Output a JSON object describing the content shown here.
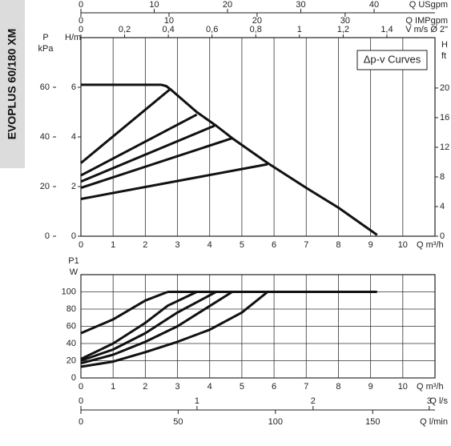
{
  "side_label": "EVOPLUS 60/180 XM",
  "chart_data": [
    {
      "type": "line",
      "annotation": "Δp-v Curves",
      "xlabel": "Q m³/h",
      "ylabel": "H/m",
      "y2label": [
        "H",
        "ft"
      ],
      "xlim": [
        0,
        11
      ],
      "xticks": [
        0,
        1,
        2,
        3,
        4,
        5,
        6,
        7,
        8,
        9,
        10
      ],
      "ylim": [
        0,
        8
      ],
      "yticks": [
        0,
        2,
        4,
        6
      ],
      "y2lim": [
        0,
        26.8
      ],
      "y2ticks": [
        0,
        4,
        8,
        12,
        16,
        20
      ],
      "grid": "x",
      "extra_axes": [
        {
          "label": "Q USgpm",
          "lim": [
            0,
            48.3
          ],
          "ticks": [
            0,
            10,
            20,
            30,
            40
          ]
        },
        {
          "label": "Q IMPgpm",
          "lim": [
            0,
            40.2
          ],
          "ticks": [
            0,
            10,
            20,
            30
          ]
        },
        {
          "label": "V m/s Ø 2\"",
          "lim": [
            0,
            1.62
          ],
          "ticks": [
            0,
            {
              "value": 0.2,
              "label": "0,2"
            },
            {
              "value": 0.4,
              "label": "0,4"
            },
            {
              "value": 0.6,
              "label": "0,6"
            },
            {
              "value": 0.8,
              "label": "0,8"
            },
            1,
            {
              "value": 1.2,
              "label": "1,2"
            },
            {
              "value": 1.4,
              "label": "1,4"
            }
          ]
        },
        {
          "label": [
            "P",
            "kPa"
          ],
          "lim": [
            0,
            80
          ],
          "ticks": [
            0,
            20,
            40,
            60
          ]
        }
      ],
      "series": [
        {
          "color": "#111111",
          "x": [
            0,
            2.5,
            2.65,
            2.8,
            3.6,
            4.2,
            4.7,
            5.8,
            7,
            8,
            9.2
          ],
          "values": [
            6.1,
            6.1,
            6.05,
            5.9,
            5.0,
            4.45,
            3.95,
            2.95,
            1.95,
            1.15,
            0.05
          ]
        },
        {
          "color": "#111111",
          "x": [
            0,
            2.75
          ],
          "values": [
            2.95,
            5.9
          ]
        },
        {
          "color": "#111111",
          "x": [
            0,
            3.6
          ],
          "values": [
            2.45,
            4.9
          ]
        },
        {
          "color": "#111111",
          "x": [
            0,
            4.15
          ],
          "values": [
            2.2,
            4.45
          ]
        },
        {
          "color": "#111111",
          "x": [
            0,
            4.7
          ],
          "values": [
            1.95,
            3.95
          ]
        },
        {
          "color": "#111111",
          "x": [
            0,
            5.8
          ],
          "values": [
            1.5,
            2.9
          ]
        }
      ]
    },
    {
      "type": "line",
      "xlabel": "Q m³/h",
      "ylabel": [
        "P1",
        "W"
      ],
      "xlim": [
        0,
        11
      ],
      "xticks": [
        0,
        1,
        2,
        3,
        4,
        5,
        6,
        7,
        8,
        9,
        10
      ],
      "ylim": [
        0,
        120
      ],
      "yticks": [
        0,
        20,
        40,
        60,
        80,
        100
      ],
      "grid": "both",
      "extra_axes": [
        {
          "label": "Q l/s",
          "lim": [
            0,
            3.05
          ],
          "ticks": [
            0,
            1,
            2,
            3
          ]
        },
        {
          "label": "Q l/min",
          "lim": [
            0,
            182
          ],
          "ticks": [
            0,
            50,
            100,
            150
          ]
        }
      ],
      "series": [
        {
          "color": "#111111",
          "x": [
            2.7,
            9.2
          ],
          "values": [
            100,
            100
          ]
        },
        {
          "color": "#111111",
          "x": [
            0,
            1,
            2,
            2.7
          ],
          "values": [
            52,
            68,
            90,
            100
          ]
        },
        {
          "color": "#111111",
          "x": [
            0,
            1,
            2,
            2.7,
            3.6
          ],
          "values": [
            22,
            40,
            64,
            84,
            100
          ]
        },
        {
          "color": "#111111",
          "x": [
            0,
            1,
            2,
            3,
            4.2
          ],
          "values": [
            20,
            33,
            52,
            76,
            100
          ]
        },
        {
          "color": "#111111",
          "x": [
            0,
            1,
            2,
            3,
            4.7
          ],
          "values": [
            17,
            27,
            42,
            60,
            100
          ]
        },
        {
          "color": "#111111",
          "x": [
            0,
            1,
            2,
            3,
            4,
            5,
            5.8
          ],
          "values": [
            13,
            19,
            30,
            42,
            56,
            76,
            100
          ]
        }
      ]
    }
  ]
}
